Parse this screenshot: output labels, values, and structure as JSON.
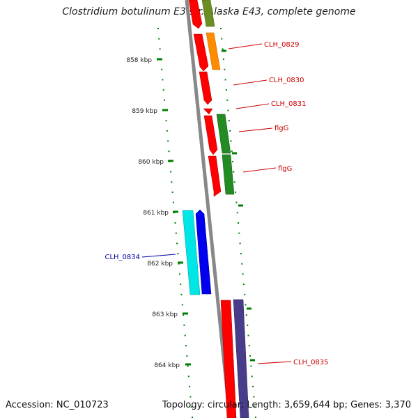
{
  "title": "Clostridium botulinum E3 str. Alaska E43, complete genome",
  "footer": {
    "accession": "Accession: NC_010723",
    "summary": "Topology: circular; Length: 3,659,644 bp; Genes: 3,370"
  },
  "colors": {
    "red": "#ff0000",
    "orange": "#ff8c00",
    "green": "#228b22",
    "olive": "#6b8e23",
    "cyan": "#00e5e5",
    "blue": "#0000ee",
    "slate": "#483d8b",
    "backbone": "#888888",
    "tick": "#008000"
  },
  "ruler": {
    "ticks": [
      "858 kbp",
      "859 kbp",
      "860 kbp",
      "861 kbp",
      "862 kbp",
      "863 kbp",
      "864 kbp"
    ]
  },
  "features": [
    {
      "label": "CLH_0829",
      "color": "#cc0000"
    },
    {
      "label": "CLH_0830",
      "color": "#cc0000"
    },
    {
      "label": "CLH_0831",
      "color": "#cc0000"
    },
    {
      "label": "flgG",
      "color": "#cc0000"
    },
    {
      "label": "flgG",
      "color": "#cc0000"
    },
    {
      "label": "CLH_0834",
      "color": "#0000aa"
    },
    {
      "label": "CLH_0835",
      "color": "#cc0000"
    }
  ]
}
